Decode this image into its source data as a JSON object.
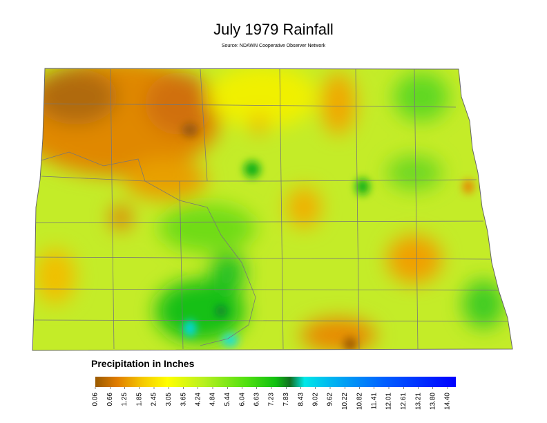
{
  "header": {
    "title": "July 1979 Rainfall",
    "subtitle": "Source: NDAWN Cooperative Observer Network"
  },
  "legend": {
    "title": "Precipitation in Inches",
    "ticks": [
      0.06,
      0.66,
      1.25,
      1.85,
      2.45,
      3.05,
      3.65,
      4.24,
      4.84,
      5.44,
      6.04,
      6.63,
      7.23,
      7.83,
      8.43,
      9.02,
      9.62,
      10.22,
      10.82,
      11.41,
      12.01,
      12.61,
      13.21,
      {
        "value": 13.8,
        "label": "13.80"
      },
      {
        "value": 14.4,
        "label": "14.40"
      }
    ]
  }
}
